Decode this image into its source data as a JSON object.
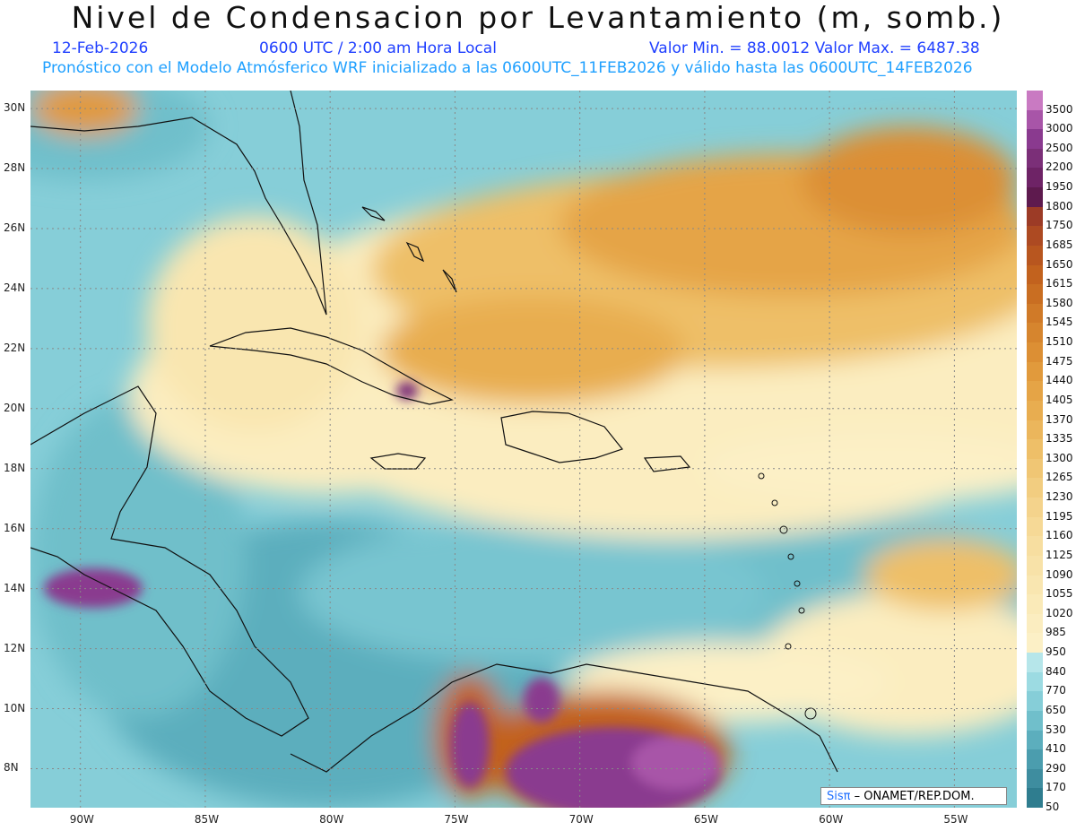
{
  "header": {
    "title": "Nivel de Condensacion por Levantamiento (m, somb.)",
    "date": "12-Feb-2026",
    "time": "0600 UTC / 2:00 am Hora Local",
    "min_max": "Valor Min. = 88.0012  Valor Max. = 6487.38",
    "model_info": "Pronóstico con el Modelo Atmósferico WRF inicializado a las 0600UTC_11FEB2026 y válido hasta las  0600UTC_14FEB2026"
  },
  "map": {
    "lon_labels": [
      "90W",
      "85W",
      "80W",
      "75W",
      "70W",
      "65W",
      "60W",
      "55W"
    ],
    "lat_labels": [
      "30N",
      "28N",
      "26N",
      "24N",
      "22N",
      "20N",
      "18N",
      "16N",
      "14N",
      "12N",
      "10N",
      "8N"
    ],
    "extent": {
      "lon_min": -92,
      "lon_max": -52.5,
      "lat_min": 6.7,
      "lat_max": 30.6
    },
    "gridlines": "dotted"
  },
  "colorbar": {
    "levels": [
      "3500",
      "3000",
      "2500",
      "2200",
      "1950",
      "1800",
      "1750",
      "1685",
      "1650",
      "1615",
      "1580",
      "1545",
      "1510",
      "1475",
      "1440",
      "1405",
      "1370",
      "1335",
      "1300",
      "1265",
      "1230",
      "1195",
      "1160",
      "1125",
      "1090",
      "1055",
      "1020",
      "985",
      "950",
      "840",
      "770",
      "650",
      "530",
      "410",
      "290",
      "170",
      "50"
    ],
    "colors": [
      "#c97ac2",
      "#a855a8",
      "#8a3a8f",
      "#7b2f78",
      "#6e2366",
      "#5e1a4e",
      "#9c3b26",
      "#ad4a22",
      "#b8561f",
      "#c2621e",
      "#c96e22",
      "#d07a28",
      "#d6852e",
      "#dc8f34",
      "#e19a3c",
      "#e5a446",
      "#e8ad50",
      "#ebb65c",
      "#eebf68",
      "#f0c674",
      "#f2cd80",
      "#f4d38c",
      "#f6d996",
      "#f7dea0",
      "#f8e2a8",
      "#f9e6b0",
      "#faeab8",
      "#fbedc0",
      "#fcf0c6",
      "#b6e6ea",
      "#9cdbe2",
      "#86ced8",
      "#70bfcb",
      "#5caebd",
      "#4b9dae",
      "#3e8d9f",
      "#2f7d8f"
    ]
  },
  "credit": {
    "logo": "Sisπ",
    "text": "– ONAMET/REP.DOM."
  }
}
